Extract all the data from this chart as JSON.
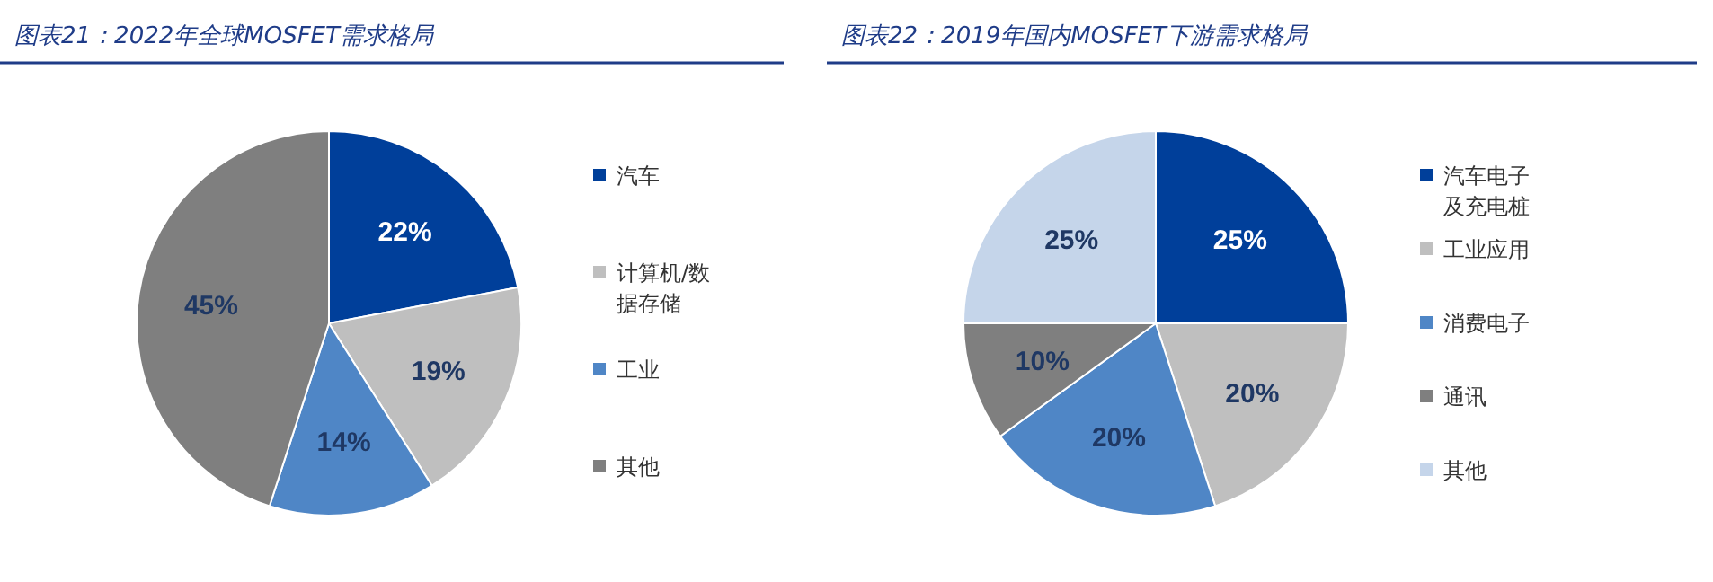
{
  "chart_data": [
    {
      "type": "pie",
      "title": "图表21：2022年全球MOSFET需求格局",
      "categories": [
        "汽车",
        "计算机/数据存储",
        "工业",
        "其他"
      ],
      "values": [
        22,
        19,
        14,
        45
      ],
      "value_labels": [
        "22%",
        "19%",
        "14%",
        "45%"
      ],
      "colors": [
        "#003f9a",
        "#bfbfbf",
        "#4f86c6",
        "#7f7f7f"
      ],
      "legend": "right"
    },
    {
      "type": "pie",
      "title": "图表22：2019年国内MOSFET下游需求格局",
      "categories": [
        "汽车电子及充电桩",
        "工业应用",
        "消费电子",
        "通讯",
        "其他"
      ],
      "values": [
        25,
        20,
        20,
        10,
        25
      ],
      "value_labels": [
        "25%",
        "20%",
        "20%",
        "10%",
        "25%"
      ],
      "colors": [
        "#003f9a",
        "#bfbfbf",
        "#4f86c6",
        "#7f7f7f",
        "#c5d5ea"
      ],
      "legend": "right"
    }
  ]
}
